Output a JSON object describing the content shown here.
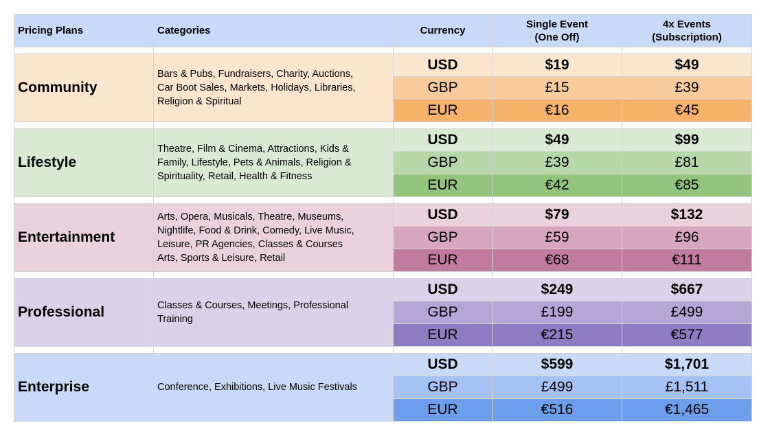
{
  "header": {
    "plans": "Pricing Plans",
    "categories": "Categories",
    "currency": "Currency",
    "single_line1": "Single Event",
    "single_line2": "(One Off)",
    "four_line1": "4x Events",
    "four_line2": "(Subscription)"
  },
  "plans": [
    {
      "name": "Community",
      "categories": [
        "Bars & Pubs, Fundraisers, Charity, Auctions,",
        "Car Boot Sales, Markets, Holidays, Libraries,",
        "Religion & Spiritual"
      ],
      "colors": {
        "base": "#fce5cd",
        "usd": "#fce5cd",
        "gbp": "#f9cb9c",
        "eur": "#f6b26b"
      },
      "rows": [
        {
          "currency": "USD",
          "single": "$19",
          "four": "$49"
        },
        {
          "currency": "GBP",
          "single": "£15",
          "four": "£39"
        },
        {
          "currency": "EUR",
          "single": "€16",
          "four": "€45"
        }
      ]
    },
    {
      "name": "Lifestyle",
      "categories": [
        "Theatre, Film & Cinema, Attractions, Kids &",
        "Family, Lifestyle, Pets & Animals, Religion &",
        "Spirituality, Retail, Health & Fitness"
      ],
      "colors": {
        "base": "#d9ead3",
        "usd": "#d9ead3",
        "gbp": "#b6d7a8",
        "eur": "#93c47d"
      },
      "rows": [
        {
          "currency": "USD",
          "single": "$49",
          "four": "$99"
        },
        {
          "currency": "GBP",
          "single": "£39",
          "four": "£81"
        },
        {
          "currency": "EUR",
          "single": "€42",
          "four": "€85"
        }
      ]
    },
    {
      "name": "Entertainment",
      "categories": [
        "Arts, Opera, Musicals, Theatre, Museums,",
        "Nightlife, Food & Drink, Comedy, Live Music,",
        "Leisure, PR Agencies, Classes & Courses",
        "Arts, Sports & Leisure, Retail"
      ],
      "colors": {
        "base": "#ead1dc",
        "usd": "#ead1dc",
        "gbp": "#d5a6bd",
        "eur": "#c27ba0"
      },
      "rows": [
        {
          "currency": "USD",
          "single": "$79",
          "four": "$132"
        },
        {
          "currency": "GBP",
          "single": "£59",
          "four": "£96"
        },
        {
          "currency": "EUR",
          "single": "€68",
          "four": "€111"
        }
      ]
    },
    {
      "name": "Professional",
      "categories": [
        "Classes & Courses, Meetings, Professional",
        "Training"
      ],
      "colors": {
        "base": "#d9d2e9",
        "usd": "#d9d2e9",
        "gbp": "#b4a7d6",
        "eur": "#8e7cc3"
      },
      "rows": [
        {
          "currency": "USD",
          "single": "$249",
          "four": "$667"
        },
        {
          "currency": "GBP",
          "single": "£199",
          "four": "£499"
        },
        {
          "currency": "EUR",
          "single": "€215",
          "four": "€577"
        }
      ]
    },
    {
      "name": "Enterprise",
      "categories": [
        "Conference, Exhibitions, Live Music Festivals"
      ],
      "colors": {
        "base": "#c9daf8",
        "usd": "#c9daf8",
        "gbp": "#a4c2f4",
        "eur": "#6d9eeb"
      },
      "rows": [
        {
          "currency": "USD",
          "single": "$599",
          "four": "$1,701"
        },
        {
          "currency": "GBP",
          "single": "£499",
          "four": "£1,511"
        },
        {
          "currency": "EUR",
          "single": "€516",
          "four": "€1,465"
        }
      ]
    }
  ]
}
